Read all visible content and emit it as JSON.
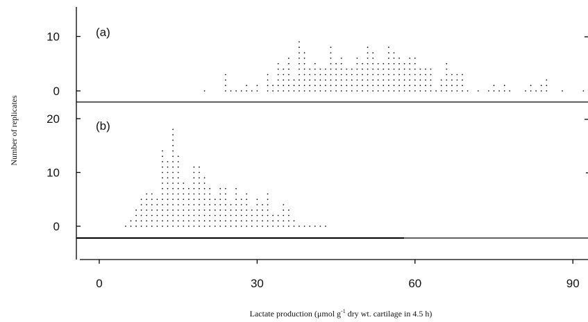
{
  "chart_data": {
    "type": "dot",
    "xlabel_prefix": "Lactate production  (μmol g",
    "xlabel_sup": "-1",
    "xlabel_suffix": " dry wt. cartilage in 4.5 h)",
    "ylabel": "Number of replicates",
    "xlim": [
      -3,
      92
    ],
    "xticks": [
      "0",
      "30",
      "60",
      "90"
    ],
    "panels": [
      {
        "label": "(a)",
        "ylim": [
          -2,
          16
        ],
        "yticks": [
          "0",
          "10"
        ],
        "counts": [
          {
            "x": 20,
            "n": 1
          },
          {
            "x": 24,
            "n": 4
          },
          {
            "x": 25,
            "n": 1
          },
          {
            "x": 26,
            "n": 1
          },
          {
            "x": 27,
            "n": 1
          },
          {
            "x": 28,
            "n": 2
          },
          {
            "x": 29,
            "n": 1
          },
          {
            "x": 30,
            "n": 2
          },
          {
            "x": 32,
            "n": 4
          },
          {
            "x": 33,
            "n": 2
          },
          {
            "x": 34,
            "n": 6
          },
          {
            "x": 35,
            "n": 5
          },
          {
            "x": 36,
            "n": 7
          },
          {
            "x": 37,
            "n": 3
          },
          {
            "x": 38,
            "n": 10
          },
          {
            "x": 39,
            "n": 8
          },
          {
            "x": 40,
            "n": 5
          },
          {
            "x": 41,
            "n": 6
          },
          {
            "x": 42,
            "n": 5
          },
          {
            "x": 43,
            "n": 5
          },
          {
            "x": 44,
            "n": 9
          },
          {
            "x": 45,
            "n": 6
          },
          {
            "x": 46,
            "n": 7
          },
          {
            "x": 47,
            "n": 5
          },
          {
            "x": 48,
            "n": 5
          },
          {
            "x": 49,
            "n": 7
          },
          {
            "x": 50,
            "n": 6
          },
          {
            "x": 51,
            "n": 9
          },
          {
            "x": 52,
            "n": 8
          },
          {
            "x": 53,
            "n": 6
          },
          {
            "x": 54,
            "n": 6
          },
          {
            "x": 55,
            "n": 9
          },
          {
            "x": 56,
            "n": 8
          },
          {
            "x": 57,
            "n": 7
          },
          {
            "x": 58,
            "n": 6
          },
          {
            "x": 59,
            "n": 7
          },
          {
            "x": 60,
            "n": 7
          },
          {
            "x": 61,
            "n": 5
          },
          {
            "x": 62,
            "n": 5
          },
          {
            "x": 63,
            "n": 5
          },
          {
            "x": 64,
            "n": 1
          },
          {
            "x": 65,
            "n": 3
          },
          {
            "x": 66,
            "n": 6
          },
          {
            "x": 67,
            "n": 4
          },
          {
            "x": 68,
            "n": 4
          },
          {
            "x": 69,
            "n": 4
          },
          {
            "x": 70,
            "n": 1
          },
          {
            "x": 72,
            "n": 1
          },
          {
            "x": 74,
            "n": 1
          },
          {
            "x": 75,
            "n": 2
          },
          {
            "x": 76,
            "n": 1
          },
          {
            "x": 77,
            "n": 2
          },
          {
            "x": 78,
            "n": 1
          },
          {
            "x": 81,
            "n": 1
          },
          {
            "x": 82,
            "n": 2
          },
          {
            "x": 83,
            "n": 1
          },
          {
            "x": 84,
            "n": 2
          },
          {
            "x": 85,
            "n": 3
          },
          {
            "x": 88,
            "n": 1
          },
          {
            "x": 92,
            "n": 1
          }
        ]
      },
      {
        "label": "(b)",
        "ylim": [
          -3,
          23
        ],
        "yticks": [
          "0",
          "10",
          "20"
        ],
        "counts": [
          {
            "x": 5,
            "n": 1
          },
          {
            "x": 6,
            "n": 2
          },
          {
            "x": 7,
            "n": 4
          },
          {
            "x": 8,
            "n": 6
          },
          {
            "x": 9,
            "n": 7
          },
          {
            "x": 10,
            "n": 7
          },
          {
            "x": 11,
            "n": 6
          },
          {
            "x": 12,
            "n": 15
          },
          {
            "x": 13,
            "n": 13
          },
          {
            "x": 14,
            "n": 19
          },
          {
            "x": 15,
            "n": 14
          },
          {
            "x": 16,
            "n": 9
          },
          {
            "x": 17,
            "n": 8
          },
          {
            "x": 18,
            "n": 12
          },
          {
            "x": 19,
            "n": 12
          },
          {
            "x": 20,
            "n": 10
          },
          {
            "x": 21,
            "n": 8
          },
          {
            "x": 22,
            "n": 6
          },
          {
            "x": 23,
            "n": 8
          },
          {
            "x": 24,
            "n": 8
          },
          {
            "x": 25,
            "n": 5
          },
          {
            "x": 26,
            "n": 8
          },
          {
            "x": 27,
            "n": 6
          },
          {
            "x": 28,
            "n": 7
          },
          {
            "x": 29,
            "n": 4
          },
          {
            "x": 30,
            "n": 6
          },
          {
            "x": 31,
            "n": 5
          },
          {
            "x": 32,
            "n": 7
          },
          {
            "x": 33,
            "n": 3
          },
          {
            "x": 34,
            "n": 3
          },
          {
            "x": 35,
            "n": 5
          },
          {
            "x": 36,
            "n": 4
          },
          {
            "x": 37,
            "n": 2
          },
          {
            "x": 38,
            "n": 1
          },
          {
            "x": 39,
            "n": 1
          },
          {
            "x": 40,
            "n": 1
          },
          {
            "x": 41,
            "n": 1
          },
          {
            "x": 42,
            "n": 1
          },
          {
            "x": 43,
            "n": 1
          }
        ]
      }
    ]
  }
}
